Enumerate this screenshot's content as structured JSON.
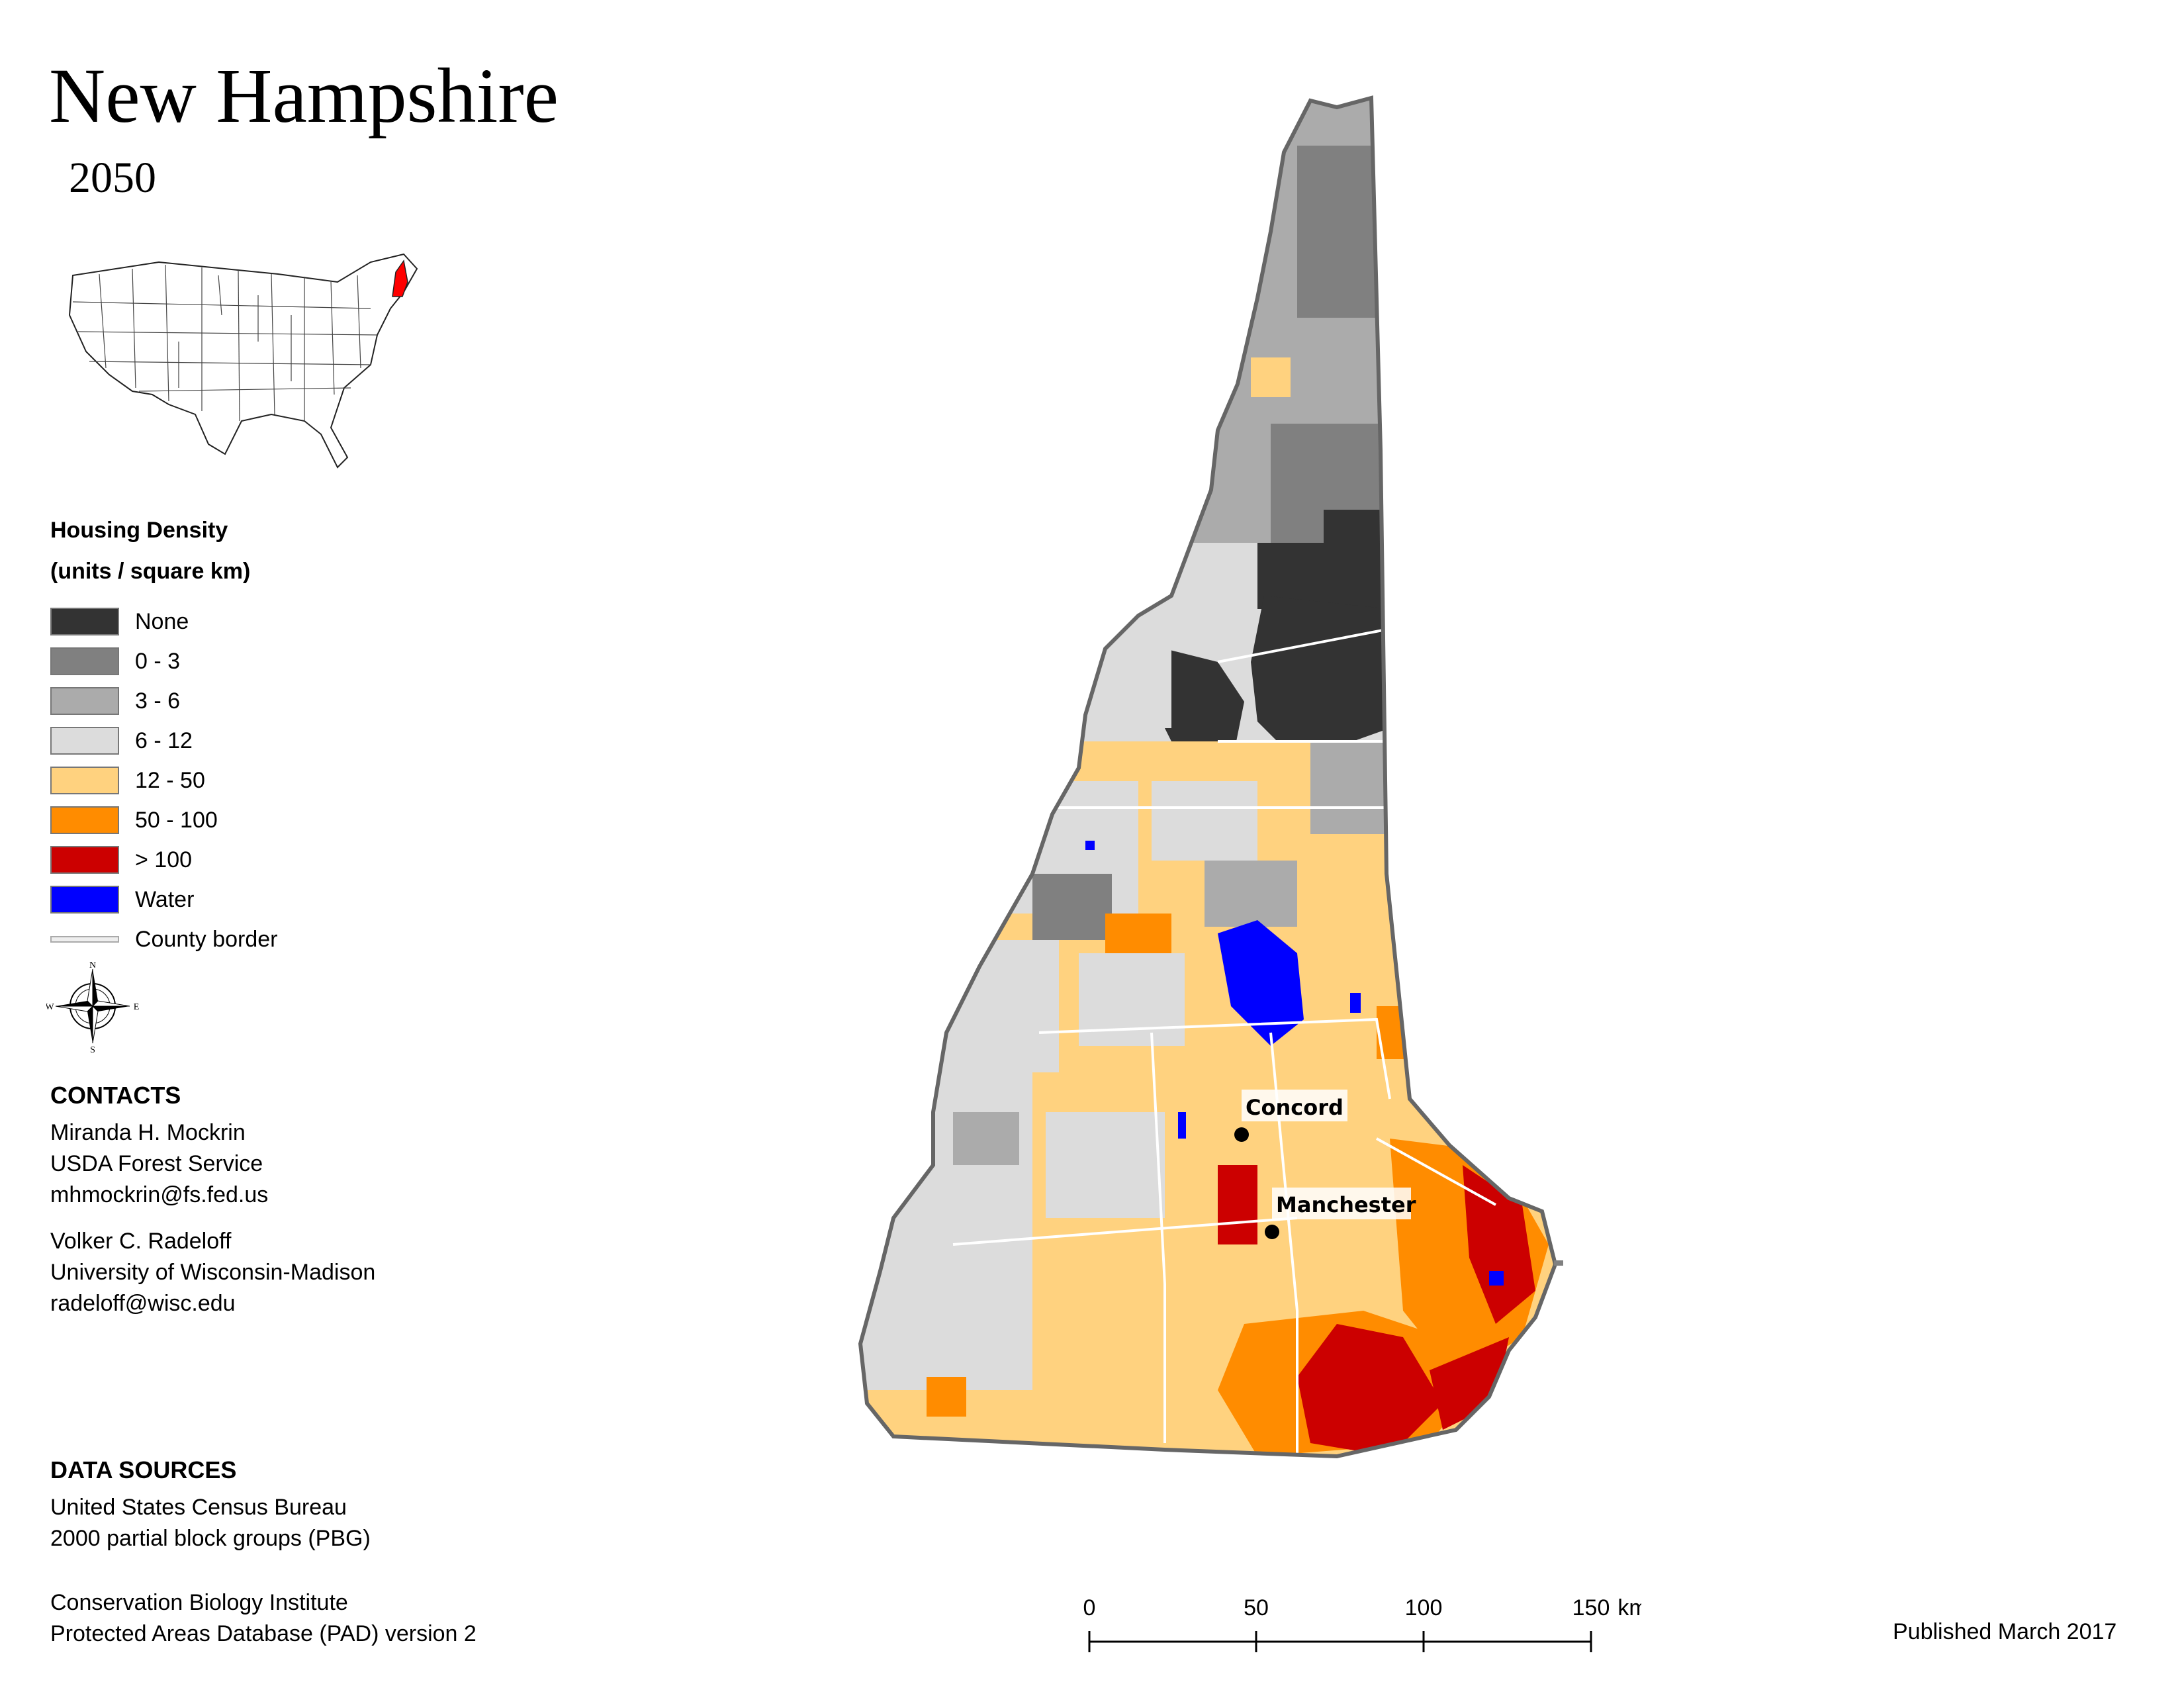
{
  "title": "New Hampshire",
  "subtitle": "2050",
  "legend": {
    "title_line1": "Housing Density",
    "title_line2": "(units / square km)",
    "items": [
      {
        "label": "None",
        "color": "#333333"
      },
      {
        "label": "0 - 3",
        "color": "#808080"
      },
      {
        "label": "3 - 6",
        "color": "#ababab"
      },
      {
        "label": "6 - 12",
        "color": "#dcdcdc"
      },
      {
        "label": "12 - 50",
        "color": "#ffd27f"
      },
      {
        "label": "50 - 100",
        "color": "#ff8c00"
      },
      {
        "label": "> 100",
        "color": "#cc0000"
      },
      {
        "label": "Water",
        "color": "#0000ff"
      }
    ],
    "county_border_label": "County border"
  },
  "compass": {
    "n": "N",
    "s": "S",
    "e": "E",
    "w": "W"
  },
  "contacts": {
    "heading": "CONTACTS",
    "person1": [
      "Miranda H. Mockrin",
      "USDA Forest Service",
      "mhmockrin@fs.fed.us"
    ],
    "person2": [
      "Volker C. Radeloff",
      "University of Wisconsin-Madison",
      "radeloff@wisc.edu"
    ]
  },
  "data_sources": {
    "heading": "DATA SOURCES",
    "source1": [
      "United States Census Bureau",
      "2000 partial block groups (PBG)"
    ],
    "source2": [
      "Conservation Biology Institute",
      "Protected Areas Database (PAD) version 2"
    ]
  },
  "map": {
    "cities": [
      {
        "name": "Concord"
      },
      {
        "name": "Manchester"
      }
    ]
  },
  "scale_bar": {
    "ticks": [
      "0",
      "50",
      "100",
      "150"
    ],
    "unit": "km"
  },
  "published": "Published March 2017",
  "inset_highlight_color": "#ff0000"
}
